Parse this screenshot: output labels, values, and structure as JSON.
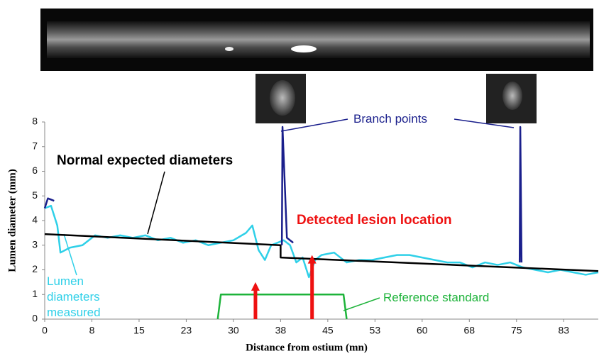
{
  "chart_data": {
    "type": "line",
    "xlabel": "Distance from ostium (mn)",
    "ylabel": "Lumen diameter (mm)",
    "xlim": [
      0,
      88
    ],
    "ylim": [
      0,
      8
    ],
    "xticks": [
      0,
      {
        "value": 7.5,
        "label": "8"
      },
      15,
      {
        "value": 22.5,
        "label": "23"
      },
      30,
      {
        "value": 37.5,
        "label": "38"
      },
      45,
      {
        "value": 52.5,
        "label": "53"
      },
      60,
      {
        "value": 67.5,
        "label": "68"
      },
      75,
      {
        "value": 82.5,
        "label": "83"
      }
    ],
    "yticks": [
      0,
      1,
      2,
      3,
      4,
      5,
      6,
      7,
      8
    ],
    "series": [
      {
        "name": "Lumen diameters measured",
        "color": "#2fd0e8",
        "style": "line",
        "x": [
          0,
          1,
          2,
          2.5,
          4,
          6,
          8,
          10,
          12,
          14,
          16,
          18,
          20,
          22,
          24,
          26,
          28,
          30,
          32,
          33,
          34,
          35,
          36,
          38,
          39,
          40,
          41,
          42,
          43,
          44,
          46,
          48,
          50,
          52,
          54,
          56,
          58,
          60,
          62,
          64,
          66,
          68,
          70,
          72,
          74,
          76,
          78,
          80,
          82,
          84,
          86,
          88
        ],
        "values": [
          4.5,
          4.6,
          3.8,
          2.7,
          2.9,
          3.0,
          3.4,
          3.3,
          3.4,
          3.3,
          3.4,
          3.2,
          3.3,
          3.1,
          3.2,
          3.0,
          3.1,
          3.2,
          3.5,
          3.8,
          2.8,
          2.4,
          3.0,
          3.2,
          3.0,
          2.3,
          2.5,
          1.7,
          2.4,
          2.6,
          2.7,
          2.3,
          2.4,
          2.4,
          2.5,
          2.6,
          2.6,
          2.5,
          2.4,
          2.3,
          2.3,
          2.1,
          2.3,
          2.2,
          2.3,
          2.1,
          2.0,
          1.9,
          2.0,
          1.9,
          1.8,
          1.9
        ]
      },
      {
        "name": "Branch points",
        "color": "#1a1f8c",
        "style": "line",
        "x": [
          0,
          0.5,
          1.5,
          2,
          37.7,
          37.8,
          38.5,
          39.5,
          40,
          75.5,
          75.6,
          75.8
        ],
        "values": [
          4.5,
          4.9,
          4.8,
          null,
          3.0,
          7.8,
          3.3,
          3.1,
          null,
          2.3,
          7.8,
          2.3
        ]
      },
      {
        "name": "Normal expected diameters",
        "color": "#000000",
        "style": "line",
        "x": [
          0,
          37.5,
          37.5,
          88
        ],
        "values": [
          3.45,
          3.0,
          2.5,
          1.95
        ]
      },
      {
        "name": "Reference standard",
        "color": "#1db33a",
        "style": "line",
        "x": [
          27.5,
          28,
          47.5,
          48
        ],
        "values": [
          0,
          1,
          1,
          0
        ]
      },
      {
        "name": "Detected lesion location",
        "color": "#ee1111",
        "style": "arrow",
        "x": [
          33.5,
          42.5
        ],
        "values": [
          1.5,
          2.6
        ]
      }
    ]
  }
}
